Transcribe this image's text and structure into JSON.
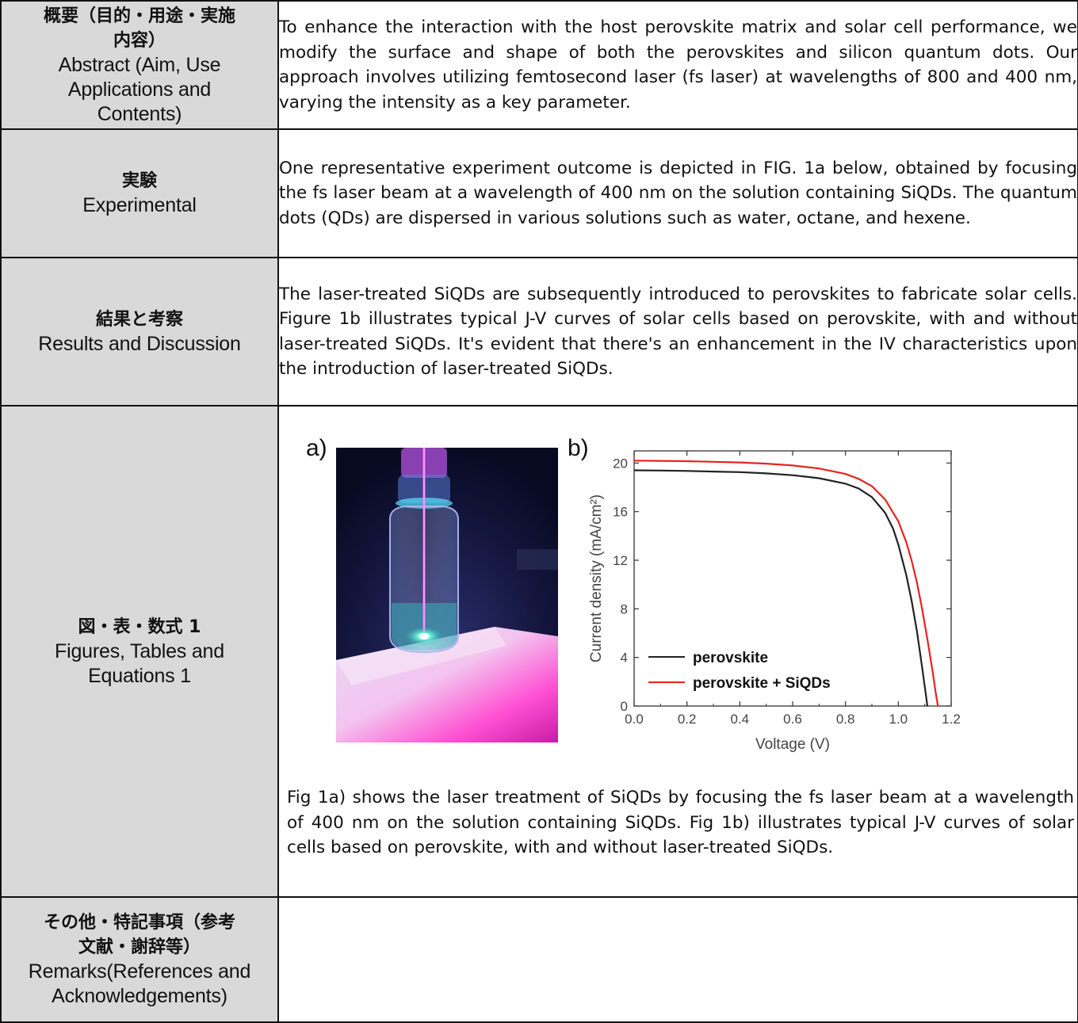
{
  "rows": [
    {
      "label_jp_1": "概要（目的・用途・実施",
      "label_jp_2": "内容）",
      "label_en_1": "Abstract (Aim, Use",
      "label_en_2": "Applications and",
      "label_en_3": "Contents)",
      "content": "To enhance the interaction with the host perovskite matrix and solar cell performance, we modify the surface and shape of both the perovskites and silicon quantum dots. Our approach involves utilizing femtosecond laser (fs laser) at wavelengths of 800 and 400 nm, varying the intensity as a key parameter."
    },
    {
      "label_jp_1": "実験",
      "label_en_1": "Experimental",
      "content": "One representative experiment outcome is depicted in FIG. 1a below, obtained by focusing the fs laser beam at a wavelength of 400 nm on the solution containing SiQDs. The quantum dots (QDs) are dispersed in various solutions such as water, octane, and hexene."
    },
    {
      "label_jp_1": "結果と考察",
      "label_en_1": "Results and Discussion",
      "content": "The laser-treated SiQDs are subsequently introduced to perovskites to fabricate solar cells. Figure 1b illustrates typical J-V curves of solar cells based on perovskite, with and without laser-treated SiQDs. It's evident that there's an enhancement in the IV characteristics upon the introduction of laser-treated SiQDs."
    },
    {
      "label_jp_1": "図・表・数式 1",
      "label_en_1": "Figures, Tables and",
      "label_en_2": "Equations 1",
      "fig_a_label": "a)",
      "fig_b_label": "b)",
      "caption": "Fig 1a) shows the laser treatment of SiQDs by focusing the fs laser beam at a wavelength of 400 nm on the solution containing SiQDs. Fig 1b) illustrates typical J-V curves of solar cells based on perovskite, with and without laser-treated SiQDs."
    },
    {
      "label_jp_1": "その他・特記事項（参考",
      "label_jp_2": "文献・謝辞等）",
      "label_en_1": "Remarks(References and",
      "label_en_2": "Acknowledgements)",
      "content": ""
    }
  ],
  "chart_data": {
    "type": "line",
    "title": "",
    "xlabel": "Voltage (V)",
    "ylabel": "Current density (mA/cm²)",
    "xlim": [
      0.0,
      1.2
    ],
    "ylim": [
      0,
      21
    ],
    "xticks": [
      "0.0",
      "0.2",
      "0.4",
      "0.6",
      "0.8",
      "1.0",
      "1.2"
    ],
    "yticks": [
      "0",
      "4",
      "8",
      "12",
      "16",
      "20"
    ],
    "legend_position": "bottom-left",
    "series": [
      {
        "name": "perovskite",
        "color": "#222222",
        "x": [
          0.0,
          0.1,
          0.2,
          0.3,
          0.4,
          0.5,
          0.6,
          0.7,
          0.8,
          0.85,
          0.9,
          0.95,
          0.98,
          1.0,
          1.03,
          1.05,
          1.07,
          1.09,
          1.1,
          1.11
        ],
        "y": [
          19.4,
          19.38,
          19.35,
          19.3,
          19.25,
          19.15,
          19.0,
          18.75,
          18.3,
          17.9,
          17.2,
          15.9,
          14.6,
          13.3,
          10.8,
          8.7,
          6.2,
          3.2,
          1.6,
          0.0
        ]
      },
      {
        "name": "perovskite + SiQDs",
        "color": "#e8231f",
        "x": [
          0.0,
          0.1,
          0.2,
          0.3,
          0.4,
          0.5,
          0.6,
          0.7,
          0.8,
          0.85,
          0.9,
          0.95,
          1.0,
          1.03,
          1.05,
          1.07,
          1.09,
          1.11,
          1.13,
          1.14,
          1.15
        ],
        "y": [
          20.2,
          20.18,
          20.15,
          20.1,
          20.05,
          19.95,
          19.8,
          19.55,
          19.1,
          18.7,
          18.1,
          17.0,
          15.2,
          13.5,
          12.0,
          10.2,
          8.0,
          5.5,
          2.8,
          1.3,
          0.0
        ]
      }
    ]
  }
}
